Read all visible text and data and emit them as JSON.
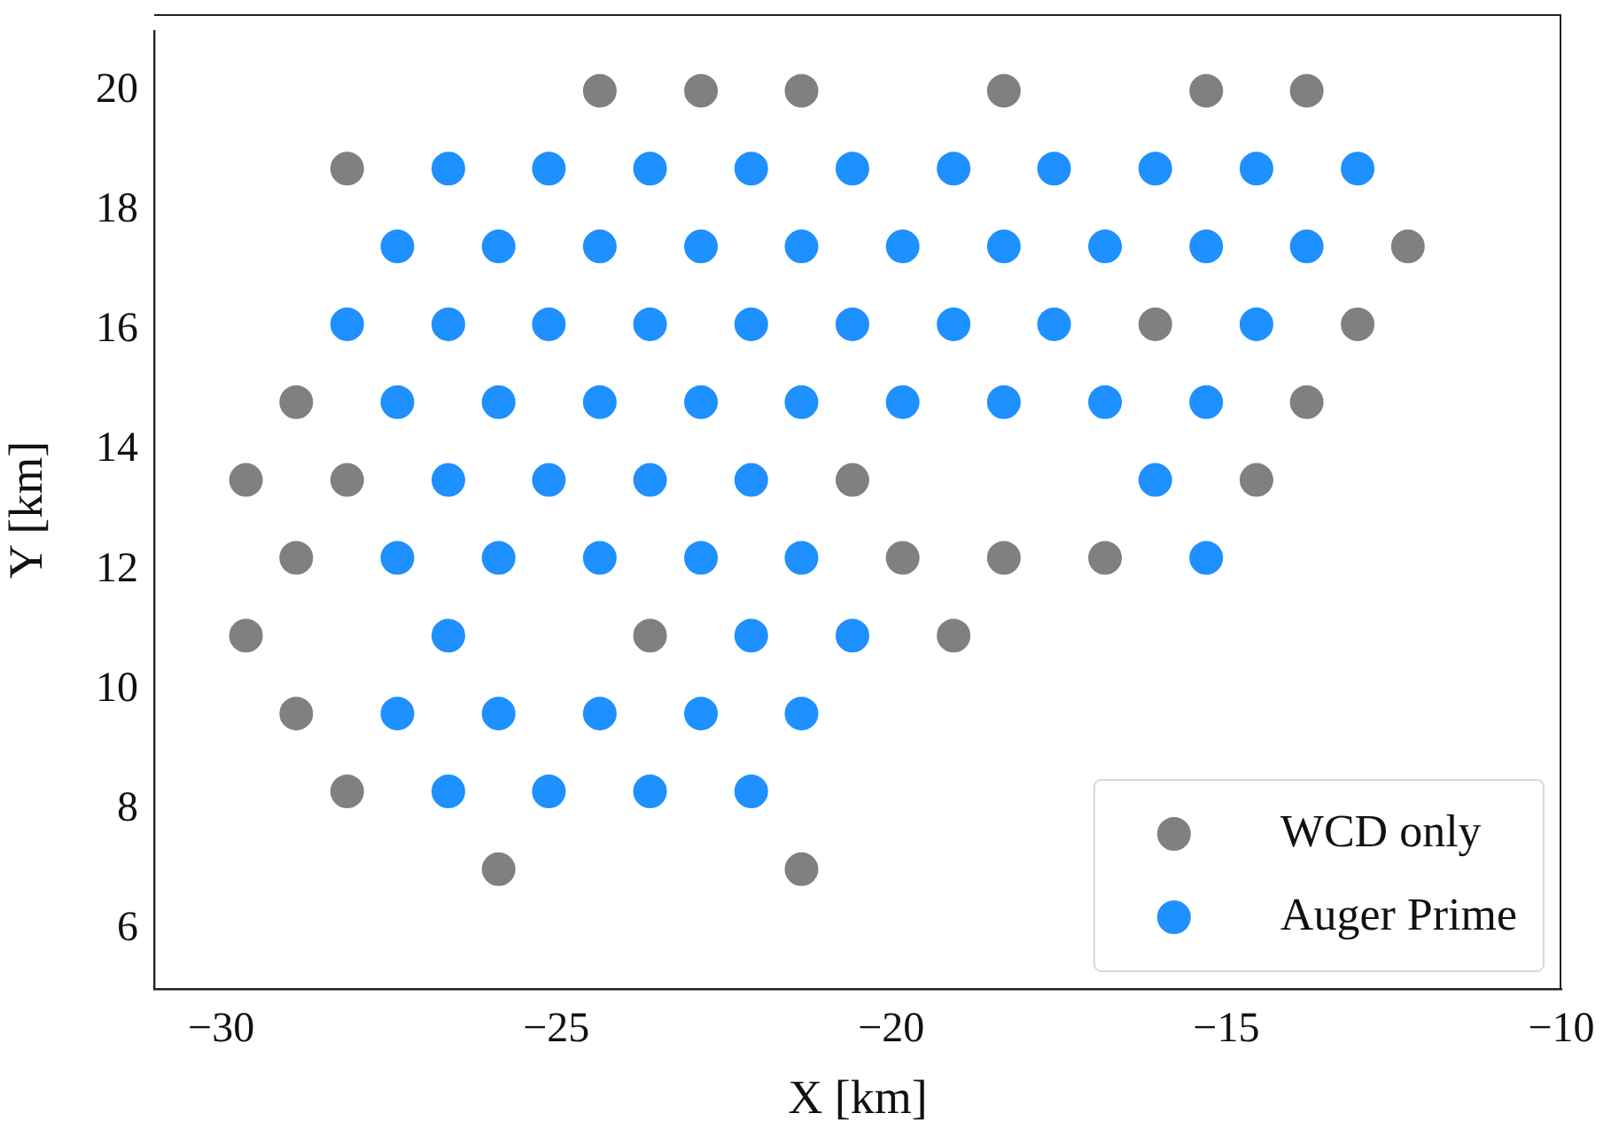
{
  "chart_data": {
    "type": "scatter",
    "xlabel": "X [km]",
    "ylabel": "Y [km]",
    "xlim": [
      -31,
      -10
    ],
    "xticks": [
      {
        "value": -30,
        "label": "−30"
      },
      {
        "value": -25,
        "label": "−25"
      },
      {
        "value": -20,
        "label": "−20"
      },
      {
        "value": -15,
        "label": "−15"
      },
      {
        "value": -10,
        "label": "−10"
      }
    ],
    "ylim": [
      5,
      21
    ],
    "yticks": [
      6,
      8,
      10,
      12,
      14,
      16,
      18,
      20
    ],
    "grid": false,
    "legend": "bottom right",
    "marker": "circle",
    "series": [
      {
        "name": "WCD only",
        "color": "#808080",
        "x": [
          -24.35,
          -22.84,
          -21.34,
          -18.32,
          -15.3,
          -13.8,
          -28.12,
          -12.29,
          -16.06,
          -13.04,
          -28.88,
          -13.8,
          -29.63,
          -28.12,
          -20.58,
          -14.55,
          -28.88,
          -19.83,
          -18.32,
          -16.81,
          -29.63,
          -23.6,
          -19.07,
          -28.88,
          -28.12,
          -25.86,
          -21.34
        ],
        "values": [
          20.0,
          20.0,
          20.0,
          20.0,
          20.0,
          20.0,
          18.7,
          17.4,
          16.1,
          16.1,
          14.8,
          14.8,
          13.5,
          13.5,
          13.5,
          13.5,
          12.2,
          12.2,
          12.2,
          12.2,
          10.9,
          10.9,
          10.9,
          9.6,
          8.3,
          7.0,
          7.0
        ]
      },
      {
        "name": "Auger Prime",
        "color": "#1e90ff",
        "x": [
          -26.61,
          -25.11,
          -23.6,
          -22.09,
          -20.58,
          -19.07,
          -17.57,
          -16.06,
          -14.55,
          -13.04,
          -27.37,
          -25.86,
          -24.35,
          -22.84,
          -21.34,
          -19.83,
          -18.32,
          -16.81,
          -15.3,
          -13.8,
          -28.12,
          -26.61,
          -25.11,
          -23.6,
          -22.09,
          -20.58,
          -19.07,
          -17.57,
          -14.55,
          -27.37,
          -25.86,
          -24.35,
          -22.84,
          -21.34,
          -19.83,
          -18.32,
          -16.81,
          -15.3,
          -26.61,
          -25.11,
          -23.6,
          -22.09,
          -16.06,
          -27.37,
          -25.86,
          -24.35,
          -22.84,
          -21.34,
          -15.3,
          -26.61,
          -22.09,
          -20.58,
          -27.37,
          -25.86,
          -24.35,
          -22.84,
          -21.34,
          -26.61,
          -25.11,
          -23.6,
          -22.09
        ],
        "values": [
          18.7,
          18.7,
          18.7,
          18.7,
          18.7,
          18.7,
          18.7,
          18.7,
          18.7,
          18.7,
          17.4,
          17.4,
          17.4,
          17.4,
          17.4,
          17.4,
          17.4,
          17.4,
          17.4,
          17.4,
          16.1,
          16.1,
          16.1,
          16.1,
          16.1,
          16.1,
          16.1,
          16.1,
          16.1,
          14.8,
          14.8,
          14.8,
          14.8,
          14.8,
          14.8,
          14.8,
          14.8,
          14.8,
          13.5,
          13.5,
          13.5,
          13.5,
          13.5,
          12.2,
          12.2,
          12.2,
          12.2,
          12.2,
          12.2,
          10.9,
          10.9,
          10.9,
          9.6,
          9.6,
          9.6,
          9.6,
          9.6,
          8.3,
          8.3,
          8.3,
          8.3
        ]
      }
    ]
  }
}
